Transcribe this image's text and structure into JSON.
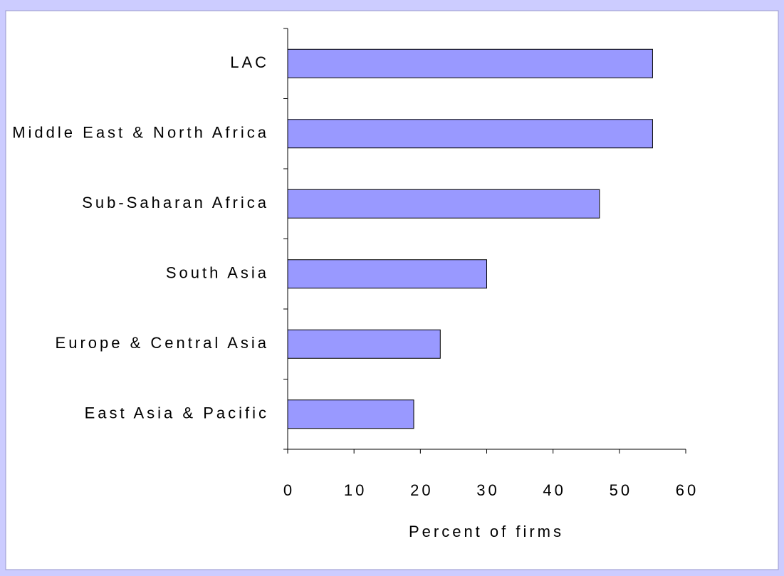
{
  "chart_data": {
    "type": "bar",
    "orientation": "horizontal",
    "categories": [
      "LAC",
      "Middle East & North Africa",
      "Sub-Saharan Africa",
      "South Asia",
      "Europe & Central Asia",
      "East Asia & Pacific"
    ],
    "values": [
      55,
      55,
      47,
      30,
      23,
      19
    ],
    "color": "#9999ff",
    "x_label": "Percent of firms",
    "xlim": [
      0,
      60
    ],
    "xticks": [
      0,
      10,
      20,
      30,
      40,
      50,
      60
    ],
    "grid": false
  }
}
